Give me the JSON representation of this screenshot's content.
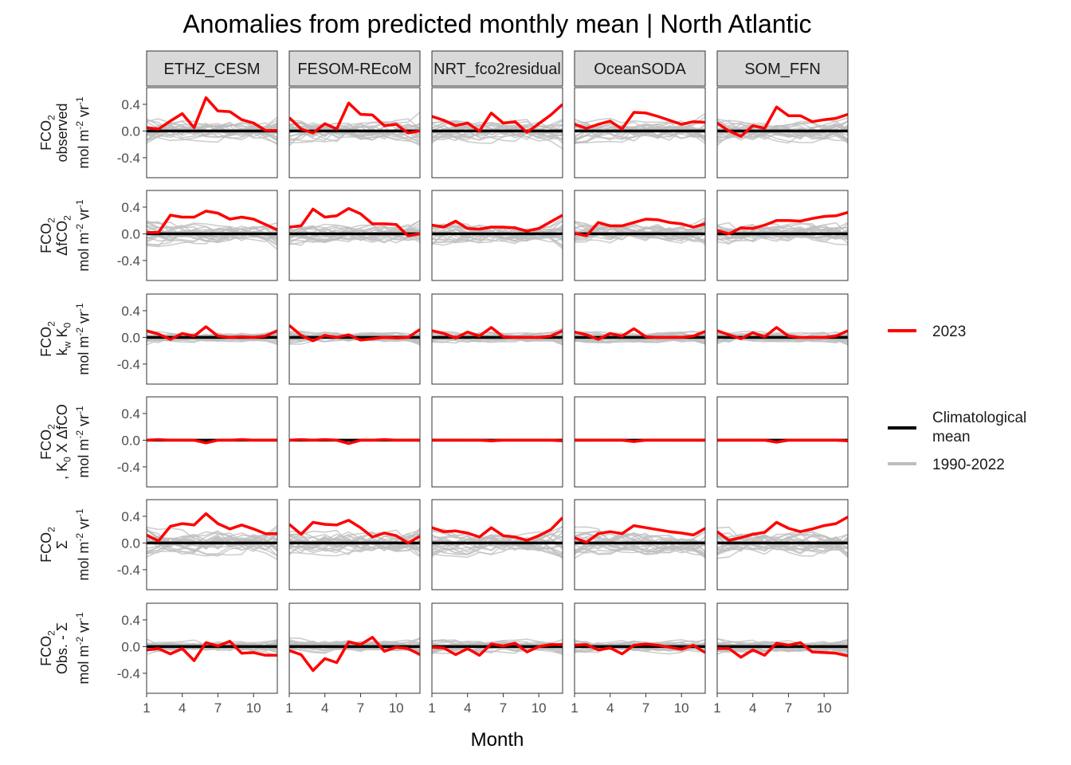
{
  "chart_data": {
    "type": "line",
    "title": "Anomalies from predicted monthly mean | North Atlantic",
    "xlabel": "Month",
    "x_ticks": [
      1,
      4,
      7,
      10
    ],
    "xlim": [
      1,
      12
    ],
    "ylim": [
      -0.7,
      0.65
    ],
    "y_ticks": [
      0.4,
      0.0,
      -0.4
    ],
    "y_tick_labels": [
      "0.4",
      "0.0",
      "-0.4"
    ],
    "grid": false,
    "columns": [
      "ETHZ_CESM",
      "FESOM-REcoM",
      "NRT_fco2residual",
      "OceanSODA",
      "SOM_FFN"
    ],
    "rows": [
      {
        "id": "observed",
        "label_lines": [
          "FCO<sub>2</sub>",
          "observed",
          "mol m<sup>-2</sup> yr<sup>-1</sup>"
        ]
      },
      {
        "id": "dfco2",
        "label_lines": [
          "FCO<sub>2</sub>",
          "ΔfCO<sub>2</sub>",
          "mol m<sup>-2</sup> yr<sup>-1</sup>"
        ]
      },
      {
        "id": "kwk0",
        "label_lines": [
          "FCO<sub>2</sub>",
          "k<sub>w</sub> K<sub>0</sub>",
          "mol m<sup>-2</sup> yr<sup>-1</sup>"
        ]
      },
      {
        "id": "k0xdfco2",
        "label_lines": [
          "FCO<sub>2</sub>",
          ", K<sub>0</sub> X ΔfCO",
          "mol m<sup>-2</sup> yr<sup>-1</sup>"
        ]
      },
      {
        "id": "sum",
        "label_lines": [
          "FCO<sub>2</sub>",
          "Σ",
          "mol m<sup>-2</sup> yr<sup>-1</sup>"
        ]
      },
      {
        "id": "obs_minus_sum",
        "label_lines": [
          "FCO<sub>2</sub>",
          "Obs. - Σ",
          "mol m<sup>-2</sup> yr<sup>-1</sup>"
        ]
      }
    ],
    "legend": {
      "placement": "right",
      "entries": [
        {
          "name": "2023",
          "color": "#ff0000",
          "group": 1
        },
        {
          "name": "Climatological mean",
          "lines": [
            "Climatological",
            "mean"
          ],
          "color": "#000000",
          "group": 2
        },
        {
          "name": "1990-2022",
          "color": "#bebebe",
          "group": 2
        }
      ]
    },
    "colors": {
      "year_2023": "#ff0000",
      "climatology": "#000000",
      "history": "#bebebe",
      "strip_fill": "#d9d9d9"
    },
    "series_2023": {
      "observed": [
        [
          0.05,
          0.03,
          0.15,
          0.26,
          0.05,
          0.5,
          0.3,
          0.29,
          0.17,
          0.12,
          0.01,
          0.01
        ],
        [
          0.2,
          0.03,
          -0.03,
          0.11,
          0.03,
          0.42,
          0.25,
          0.24,
          0.08,
          0.1,
          -0.03,
          0.0
        ],
        [
          0.22,
          0.16,
          0.08,
          0.12,
          0.0,
          0.27,
          0.12,
          0.14,
          -0.02,
          0.11,
          0.24,
          0.4
        ],
        [
          0.1,
          0.04,
          0.1,
          0.15,
          0.03,
          0.28,
          0.27,
          0.22,
          0.16,
          0.1,
          0.14,
          0.13
        ],
        [
          0.12,
          0.0,
          -0.08,
          0.08,
          0.04,
          0.36,
          0.23,
          0.23,
          0.14,
          0.17,
          0.19,
          0.25
        ]
      ],
      "dfco2": [
        [
          0.02,
          0.02,
          0.28,
          0.25,
          0.25,
          0.34,
          0.31,
          0.22,
          0.25,
          0.22,
          0.14,
          0.06
        ],
        [
          0.1,
          0.12,
          0.37,
          0.25,
          0.27,
          0.38,
          0.3,
          0.15,
          0.15,
          0.14,
          -0.03,
          0.0
        ],
        [
          0.13,
          0.1,
          0.19,
          0.08,
          0.07,
          0.1,
          0.1,
          0.09,
          0.04,
          0.08,
          0.18,
          0.28
        ],
        [
          0.01,
          -0.03,
          0.17,
          0.12,
          0.12,
          0.17,
          0.22,
          0.21,
          0.17,
          0.15,
          0.1,
          0.15
        ],
        [
          0.05,
          0.0,
          0.09,
          0.08,
          0.13,
          0.2,
          0.2,
          0.19,
          0.23,
          0.26,
          0.27,
          0.32
        ]
      ],
      "kwk0": [
        [
          0.1,
          0.05,
          -0.03,
          0.06,
          0.02,
          0.16,
          0.02,
          0.0,
          0.01,
          0.0,
          0.02,
          0.1
        ],
        [
          0.18,
          0.03,
          -0.05,
          0.03,
          0.0,
          0.04,
          -0.04,
          -0.02,
          0.0,
          -0.01,
          0.0,
          0.12
        ],
        [
          0.1,
          0.06,
          -0.01,
          0.08,
          0.02,
          0.15,
          0.01,
          0.0,
          0.0,
          0.0,
          0.02,
          0.1
        ],
        [
          0.08,
          0.04,
          -0.03,
          0.06,
          0.02,
          0.13,
          0.01,
          0.0,
          0.0,
          0.0,
          0.02,
          0.09
        ],
        [
          0.1,
          0.04,
          -0.02,
          0.07,
          0.01,
          0.15,
          0.02,
          0.0,
          0.0,
          0.0,
          0.02,
          0.1
        ]
      ],
      "k0xdfco2": [
        [
          0.0,
          0.01,
          0.0,
          0.0,
          0.0,
          -0.04,
          0.0,
          0.0,
          0.01,
          0.0,
          0.0,
          0.0
        ],
        [
          0.0,
          0.01,
          0.0,
          0.01,
          0.0,
          -0.05,
          0.0,
          0.0,
          0.01,
          0.0,
          0.0,
          0.0
        ],
        [
          0.0,
          0.0,
          0.0,
          0.0,
          0.0,
          -0.01,
          0.0,
          0.0,
          0.0,
          0.0,
          0.0,
          -0.01
        ],
        [
          0.0,
          0.0,
          0.0,
          0.0,
          0.0,
          -0.02,
          0.0,
          0.0,
          0.0,
          0.0,
          0.0,
          0.0
        ],
        [
          0.0,
          0.0,
          0.0,
          0.0,
          0.0,
          -0.03,
          0.0,
          0.0,
          0.0,
          0.0,
          0.0,
          -0.01
        ]
      ],
      "sum": [
        [
          0.12,
          0.03,
          0.25,
          0.29,
          0.27,
          0.44,
          0.29,
          0.21,
          0.27,
          0.21,
          0.14,
          0.14
        ],
        [
          0.28,
          0.13,
          0.31,
          0.28,
          0.27,
          0.34,
          0.23,
          0.09,
          0.15,
          0.11,
          0.0,
          0.1
        ],
        [
          0.23,
          0.17,
          0.18,
          0.15,
          0.09,
          0.23,
          0.11,
          0.09,
          0.04,
          0.11,
          0.2,
          0.38
        ],
        [
          0.08,
          0.01,
          0.14,
          0.17,
          0.14,
          0.26,
          0.23,
          0.2,
          0.17,
          0.15,
          0.12,
          0.22
        ],
        [
          0.17,
          0.04,
          0.08,
          0.13,
          0.16,
          0.31,
          0.22,
          0.17,
          0.21,
          0.26,
          0.29,
          0.39
        ]
      ],
      "obs_minus_sum": [
        [
          -0.05,
          -0.03,
          -0.11,
          -0.03,
          -0.21,
          0.06,
          0.01,
          0.08,
          -0.1,
          -0.09,
          -0.13,
          -0.13
        ],
        [
          -0.06,
          -0.12,
          -0.36,
          -0.18,
          -0.24,
          0.07,
          0.03,
          0.14,
          -0.07,
          -0.01,
          -0.03,
          -0.12
        ],
        [
          -0.01,
          -0.02,
          -0.12,
          -0.03,
          -0.13,
          0.04,
          0.01,
          0.05,
          -0.08,
          0.0,
          0.03,
          0.03
        ],
        [
          0.02,
          0.03,
          -0.05,
          -0.02,
          -0.11,
          0.02,
          0.04,
          0.02,
          -0.01,
          -0.04,
          0.02,
          -0.09
        ],
        [
          -0.03,
          -0.03,
          -0.16,
          -0.05,
          -0.13,
          0.05,
          0.02,
          0.06,
          -0.08,
          -0.09,
          -0.1,
          -0.14
        ]
      ]
    },
    "climatological_mean": [
      0,
      0,
      0,
      0,
      0,
      0,
      0,
      0,
      0,
      0,
      0,
      0
    ],
    "history_spread": {
      "observed": 0.16,
      "dfco2": 0.15,
      "kwk0": 0.08,
      "k0xdfco2": 0.01,
      "sum": 0.18,
      "obs_minus_sum": 0.09
    }
  }
}
